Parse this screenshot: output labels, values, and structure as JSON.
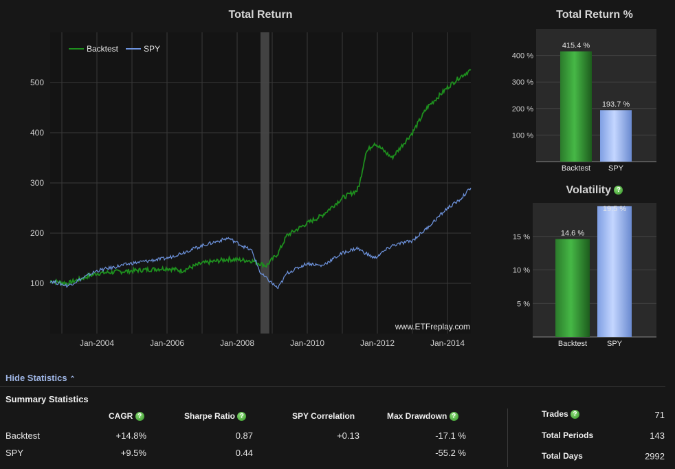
{
  "main_chart": {
    "title": "Total Return",
    "watermark": "www.ETFreplay.com",
    "legend": [
      {
        "name": "Backtest",
        "color": "#1e8f1e"
      },
      {
        "name": "SPY",
        "color": "#6f95e0"
      }
    ],
    "y_ticks": [
      "100",
      "200",
      "300",
      "400",
      "500"
    ],
    "x_ticks": [
      "Jan-2004",
      "Jan-2006",
      "Jan-2008",
      "Jan-2010",
      "Jan-2012",
      "Jan-2014"
    ]
  },
  "return_chart": {
    "title": "Total Return %",
    "y_ticks": [
      "100 %",
      "200 %",
      "300 %",
      "400 %"
    ],
    "bars": [
      {
        "label": "Backtest",
        "value_label": "415.4 %"
      },
      {
        "label": "SPY",
        "value_label": "193.7 %"
      }
    ]
  },
  "volatility_chart": {
    "title": "Volatility",
    "y_ticks": [
      "5 %",
      "10 %",
      "15 %"
    ],
    "bars": [
      {
        "label": "Backtest",
        "value_label": "14.6 %"
      },
      {
        "label": "SPY",
        "value_label": "19.5 %"
      }
    ]
  },
  "stats": {
    "toggle": "Hide Statistics",
    "title": "Summary Statistics",
    "headers": [
      "CAGR",
      "Sharpe Ratio",
      "SPY Correlation",
      "Max Drawdown"
    ],
    "rows": [
      {
        "name": "Backtest",
        "cagr": "+14.8%",
        "sharpe": "0.87",
        "corr": "+0.13",
        "dd": "-17.1 %"
      },
      {
        "name": "SPY",
        "cagr": "+9.5%",
        "sharpe": "0.44",
        "corr": "",
        "dd": "-55.2 %"
      }
    ],
    "right": [
      {
        "label": "Trades",
        "value": "71"
      },
      {
        "label": "Total Periods",
        "value": "143"
      },
      {
        "label": "Total Days",
        "value": "2992"
      }
    ]
  },
  "chart_data": [
    {
      "type": "line",
      "title": "Total Return",
      "x_range": [
        "2002-09",
        "2014-09"
      ],
      "ylim": [
        0,
        600
      ],
      "grid": true,
      "legend_position": "top-left",
      "highlight_band": [
        "2008-09",
        "2008-12"
      ],
      "series": [
        {
          "name": "Backtest",
          "color": "#1e8f1e",
          "x": [
            "2002-09",
            "2003-03",
            "2004-01",
            "2005-01",
            "2006-01",
            "2006-06",
            "2007-01",
            "2007-10",
            "2008-06",
            "2008-11",
            "2009-03",
            "2009-06",
            "2010-01",
            "2010-06",
            "2011-01",
            "2011-06",
            "2011-07",
            "2011-09",
            "2011-12",
            "2012-06",
            "2013-01",
            "2013-06",
            "2014-01",
            "2014-05",
            "2014-09"
          ],
          "y": [
            105,
            100,
            120,
            125,
            130,
            125,
            140,
            148,
            145,
            135,
            160,
            195,
            220,
            235,
            270,
            285,
            300,
            360,
            380,
            350,
            400,
            450,
            490,
            510,
            525
          ]
        },
        {
          "name": "SPY",
          "color": "#6f95e0",
          "x": [
            "2002-09",
            "2003-03",
            "2004-01",
            "2005-01",
            "2006-01",
            "2007-01",
            "2007-10",
            "2008-06",
            "2008-09",
            "2009-03",
            "2009-06",
            "2010-01",
            "2010-06",
            "2011-01",
            "2011-06",
            "2011-12",
            "2012-06",
            "2013-01",
            "2013-06",
            "2014-01",
            "2014-05",
            "2014-09"
          ],
          "y": [
            105,
            95,
            125,
            140,
            150,
            175,
            190,
            165,
            120,
            90,
            120,
            140,
            135,
            160,
            170,
            150,
            175,
            185,
            210,
            250,
            265,
            290
          ]
        }
      ]
    },
    {
      "type": "bar",
      "title": "Total Return %",
      "categories": [
        "Backtest",
        "SPY"
      ],
      "values": [
        415.4,
        193.7
      ],
      "ylim": [
        0,
        500
      ]
    },
    {
      "type": "bar",
      "title": "Volatility",
      "categories": [
        "Backtest",
        "SPY"
      ],
      "values": [
        14.6,
        19.5
      ],
      "ylim": [
        0,
        20
      ]
    }
  ]
}
